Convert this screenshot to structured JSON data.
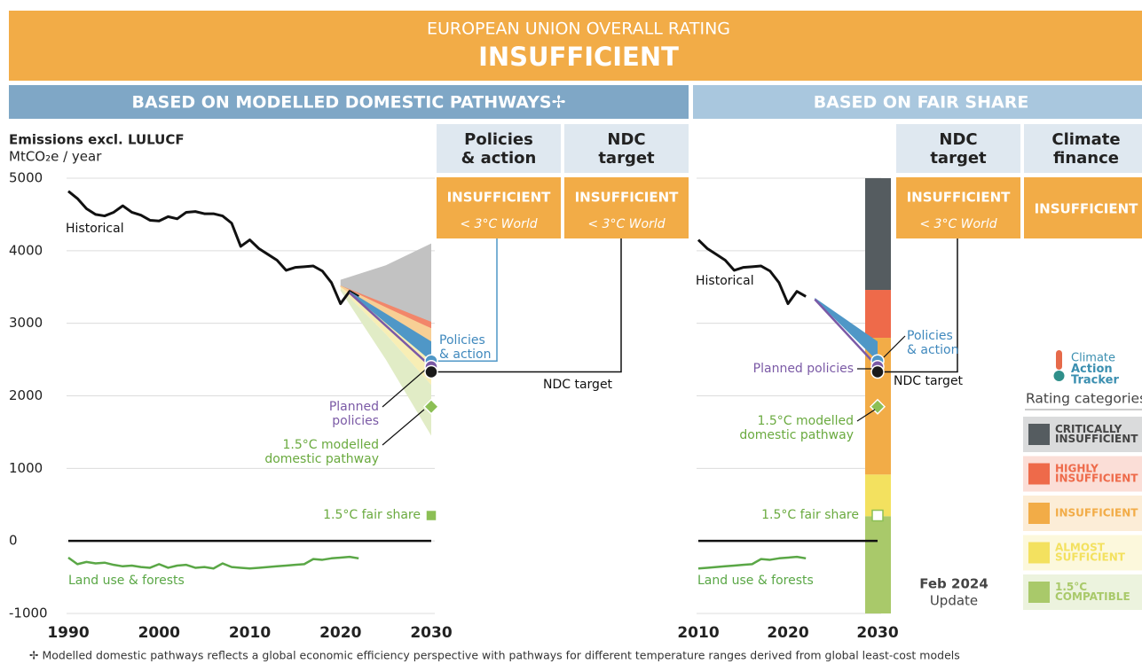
{
  "header": {
    "title": "EUROPEAN UNION OVERALL RATING",
    "rating": "INSUFFICIENT"
  },
  "sections": [
    "BASED ON MODELLED DOMESTIC PATHWAYS✢",
    "BASED ON FAIR SHARE"
  ],
  "rating_boxes": [
    {
      "title": [
        "Policies",
        "& action"
      ],
      "rating": "INSUFFICIENT",
      "note": "< 3°C World"
    },
    {
      "title": [
        "NDC",
        "target"
      ],
      "rating": "INSUFFICIENT",
      "note": "< 3°C World"
    },
    {
      "title": [
        "NDC",
        "target"
      ],
      "rating": "INSUFFICIENT",
      "note": "< 3°C World"
    },
    {
      "title": [
        "Climate",
        "finance"
      ],
      "rating": "INSUFFICIENT"
    }
  ],
  "chart_data": [
    {
      "type": "line",
      "y_title": [
        "Emissions excl. LULUCF",
        "MtCO₂e / year"
      ],
      "xlim": [
        1990,
        2030
      ],
      "ylim": [
        -1000,
        5000
      ],
      "xticks": [
        1990,
        2000,
        2010,
        2020,
        2030
      ],
      "yticks": [
        -1000,
        0,
        1000,
        2000,
        3000,
        4000,
        5000
      ],
      "show_ytick_labels": true,
      "grid": true,
      "x": [
        1990,
        1991,
        1992,
        1993,
        1994,
        1995,
        1996,
        1997,
        1998,
        1999,
        2000,
        2001,
        2002,
        2003,
        2004,
        2005,
        2006,
        2007,
        2008,
        2009,
        2010,
        2011,
        2012,
        2013,
        2014,
        2015,
        2016,
        2017,
        2018,
        2019,
        2020,
        2021,
        2022
      ],
      "series": [
        {
          "name": "Historical",
          "color": "#111111",
          "values": [
            4820,
            4720,
            4580,
            4500,
            4480,
            4530,
            4620,
            4530,
            4490,
            4420,
            4410,
            4470,
            4440,
            4530,
            4540,
            4510,
            4510,
            4480,
            4380,
            4060,
            4150,
            4030,
            3950,
            3870,
            3730,
            3770,
            3780,
            3790,
            3720,
            3560,
            3270,
            3440,
            3370
          ]
        },
        {
          "name": "Land use & forests",
          "color": "#5aa746",
          "values": [
            -230,
            -320,
            -290,
            -310,
            -300,
            -330,
            -350,
            -340,
            -360,
            -370,
            -320,
            -370,
            -340,
            -330,
            -370,
            -360,
            -380,
            -310,
            -360,
            -370,
            -380,
            -370,
            -360,
            -350,
            -340,
            -330,
            -320,
            -250,
            -260,
            -240,
            -230,
            -220,
            -240
          ]
        }
      ],
      "ranges": [
        {
          "color": "#c2c2c2",
          "x": [
            2020,
            2025,
            2030
          ],
          "low": [
            3500,
            3250,
            3000
          ],
          "high": [
            3600,
            3800,
            4100
          ]
        },
        {
          "color": "#f2866a",
          "x": [
            2020,
            2025,
            2030
          ],
          "low": [
            3500,
            3200,
            2930
          ],
          "high": [
            3520,
            3270,
            3020
          ]
        },
        {
          "color": "#f7cf95",
          "x": [
            2020,
            2025,
            2030
          ],
          "low": [
            3500,
            3050,
            2550
          ],
          "high": [
            3520,
            3220,
            2930
          ]
        },
        {
          "color": "#f8eeb5",
          "x": [
            2020,
            2025,
            2030
          ],
          "low": [
            3480,
            2850,
            2150
          ],
          "high": [
            3500,
            3050,
            2550
          ]
        },
        {
          "color": "#e1ecc6",
          "x": [
            2020,
            2025,
            2030
          ],
          "low": [
            3450,
            2500,
            1450
          ],
          "high": [
            3480,
            2850,
            2150
          ]
        }
      ],
      "projection": {
        "color": "#4f97c7",
        "x": [
          2021,
          2030
        ],
        "low": [
          3420,
          2480
        ],
        "high": [
          3440,
          2750
        ]
      },
      "planned": {
        "color": "#7b5aa6",
        "x": [
          2021,
          2030
        ],
        "values": [
          3420,
          2400
        ]
      },
      "markers": [
        {
          "label": [
            "Policies",
            "& action"
          ],
          "color": "#4f97c7",
          "text_color": "#3f88bd",
          "shape": "circle",
          "x": 2030,
          "value": 2480
        },
        {
          "label": [
            "Planned",
            "policies"
          ],
          "color": "#7b5aa6",
          "text_color": "#7b5aa6",
          "shape": "circle",
          "x": 2030,
          "value": 2400
        },
        {
          "label": [
            "NDC target"
          ],
          "color": "#1a1a1a",
          "text_color": "#111111",
          "shape": "circle",
          "x": 2030,
          "value": 2330
        },
        {
          "label": [
            "1.5°C modelled",
            "domestic pathway"
          ],
          "color": "#8cbf55",
          "text_color": "#6aaa3f",
          "shape": "diamond",
          "x": 2030,
          "value": 1850
        },
        {
          "label": [
            "1.5°C fair share"
          ],
          "color": "#8cbf55",
          "text_color": "#6aaa3f",
          "shape": "square",
          "x": 2030,
          "value": 350
        }
      ]
    },
    {
      "type": "line",
      "xlim": [
        2010,
        2030
      ],
      "ylim": [
        -1000,
        5000
      ],
      "xticks": [
        2010,
        2020,
        2030
      ],
      "yticks": [
        -1000,
        0,
        1000,
        2000,
        3000,
        4000,
        5000
      ],
      "show_ytick_labels": false,
      "grid": true,
      "x": [
        2010,
        2011,
        2012,
        2013,
        2014,
        2015,
        2016,
        2017,
        2018,
        2019,
        2020,
        2021,
        2022
      ],
      "series": [
        {
          "name": "Historical",
          "color": "#111111",
          "values": [
            4150,
            4030,
            3950,
            3870,
            3730,
            3770,
            3780,
            3790,
            3720,
            3560,
            3270,
            3440,
            3370
          ]
        },
        {
          "name": "Land use & forests",
          "color": "#5aa746",
          "values": [
            -380,
            -370,
            -360,
            -350,
            -340,
            -330,
            -320,
            -250,
            -260,
            -240,
            -230,
            -220,
            -240
          ]
        }
      ],
      "bands": [
        {
          "name": [
            "1.5°C",
            "COMPATIBLE"
          ],
          "color": "#a9c96a",
          "low": -1000,
          "high": 341
        },
        {
          "name": [
            "ALMOST",
            "SUFFICIENT"
          ],
          "color": "#f3e15f",
          "low": 341,
          "high": 915
        },
        {
          "name": [
            "INSUFFICIENT"
          ],
          "color": "#f2ac47",
          "low": 915,
          "high": 2800
        },
        {
          "name": [
            "HIGHLY",
            "INSUFFICIENT"
          ],
          "color": "#ee6a4a",
          "low": 2800,
          "high": 3460
        },
        {
          "name": [
            "CRITICALLY",
            "INSUFFICIENT"
          ],
          "color": "#555c60",
          "low": 3460,
          "high": 5000
        }
      ],
      "legend_title": "Rating categories",
      "projection": {
        "color": "#4f97c7",
        "x": [
          2023,
          2030
        ],
        "low": [
          3330,
          2480
        ],
        "high": [
          3350,
          2750
        ]
      },
      "planned": {
        "color": "#7b5aa6",
        "x": [
          2023,
          2030
        ],
        "values": [
          3330,
          2400
        ]
      },
      "markers": [
        {
          "label": [
            "Policies",
            "& action"
          ],
          "color": "#4f97c7",
          "text_color": "#3f88bd",
          "shape": "circle",
          "x": 2030,
          "value": 2480
        },
        {
          "label": [
            "Planned policies"
          ],
          "color": "#7b5aa6",
          "text_color": "#7b5aa6",
          "shape": "circle",
          "x": 2030,
          "value": 2400
        },
        {
          "label": [
            "NDC target"
          ],
          "color": "#1a1a1a",
          "text_color": "#111111",
          "shape": "circle",
          "x": 2030,
          "value": 2330
        },
        {
          "label": [
            "1.5°C modelled",
            "domestic pathway"
          ],
          "color": "#8cbf55",
          "text_color": "#6aaa3f",
          "shape": "diamond",
          "x": 2030,
          "value": 1850
        },
        {
          "label": [
            "1.5°C fair share"
          ],
          "color": "#ffffff",
          "text_color": "#6aaa3f",
          "shape": "square",
          "x": 2030,
          "value": 350
        }
      ]
    }
  ],
  "logo": [
    "Climate",
    "Action",
    "Tracker"
  ],
  "update": [
    "Feb 2024",
    "Update"
  ],
  "footnote": "✢  Modelled domestic pathways reflects a global economic efficiency perspective with pathways for different temperature ranges derived from global least-cost models"
}
